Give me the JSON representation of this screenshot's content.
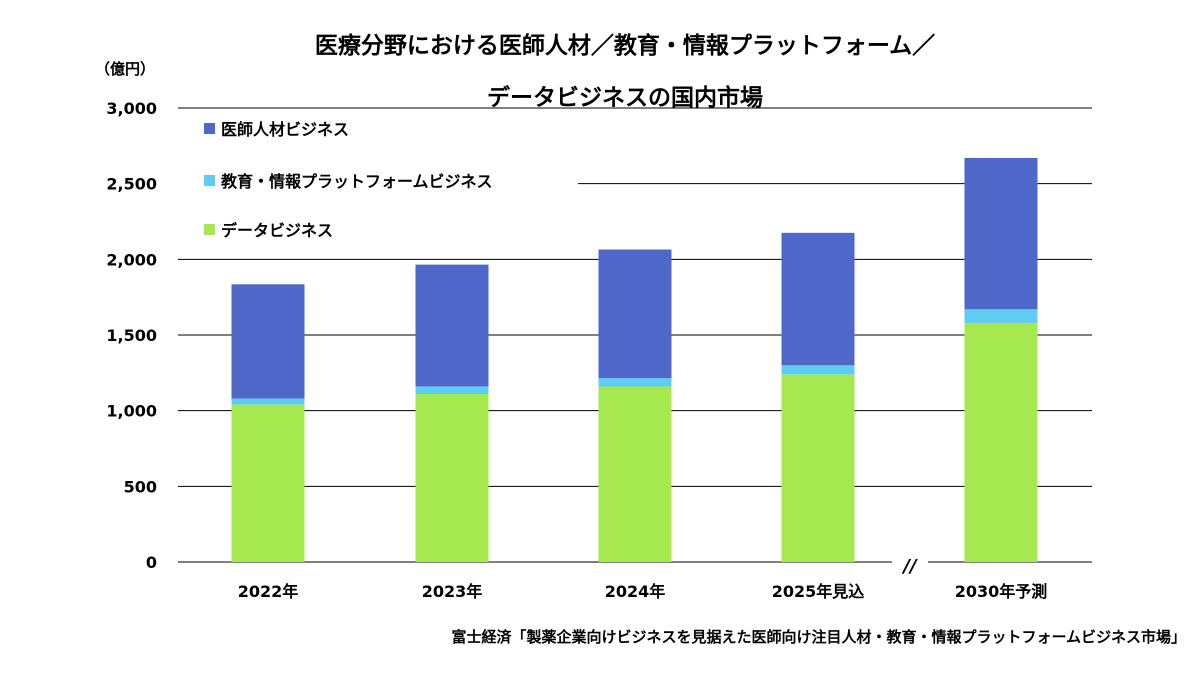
{
  "title_lines": [
    "医療分野における医師人材／教育・情報プラットフォーム／",
    "データビジネスの国内市場"
  ],
  "unit_label": "（億円）",
  "source_note": "富士経済「製薬企業向けビジネスを見据えた医師向け注目人材・教育・情報プラットフォームビジネス市場」",
  "axis_break_mark": "//",
  "colors": {
    "doctor_hr": "#4F67C8",
    "education_platform": "#5ECCF3",
    "data_business": "#A6E84F",
    "gridline": "#000000"
  },
  "chart_data": {
    "type": "bar",
    "stacked": true,
    "title": "医療分野における医師人材／教育・情報プラットフォーム／データビジネスの国内市場",
    "ylabel": "（億円）",
    "ylim": [
      0,
      3000
    ],
    "yticks": [
      0,
      500,
      1000,
      1500,
      2000,
      2500,
      3000
    ],
    "ytick_labels": [
      "0",
      "500",
      "1,000",
      "1,500",
      "2,000",
      "2,500",
      "3,000"
    ],
    "grid": true,
    "legend_position": "top-left",
    "categories": [
      "2022年",
      "2023年",
      "2024年",
      "2025年見込",
      "2030年予測"
    ],
    "axis_break_between": [
      "2025年見込",
      "2030年予測"
    ],
    "series": [
      {
        "name": "データビジネス",
        "color_key": "data_business",
        "values": [
          1040,
          1110,
          1160,
          1240,
          1580
        ]
      },
      {
        "name": "教育・情報プラットフォームビジネス",
        "color_key": "education_platform",
        "values": [
          40,
          50,
          55,
          60,
          90
        ]
      },
      {
        "name": "医師人材ビジネス",
        "color_key": "doctor_hr",
        "values": [
          755,
          805,
          850,
          875,
          1000
        ]
      }
    ]
  },
  "legend": [
    {
      "name": "医師人材ビジネス",
      "color_key": "doctor_hr"
    },
    {
      "name": "教育・情報プラットフォームビジネス",
      "color_key": "education_platform"
    },
    {
      "name": "データビジネス",
      "color_key": "data_business"
    }
  ]
}
